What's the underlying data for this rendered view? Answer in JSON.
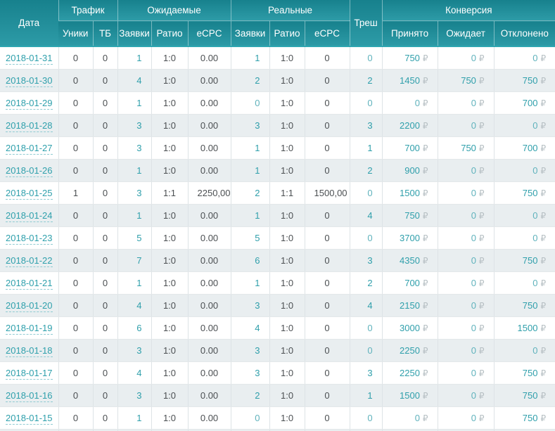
{
  "table": {
    "currency_symbol": "₽",
    "header": {
      "date": "Дата",
      "traffic": "Трафик",
      "uniques": "Уники",
      "tb": "ТБ",
      "expected": "Ожидаемые",
      "leads": "Заявки",
      "ratio": "Ратио",
      "ecpc": "eCPC",
      "real": "Реальные",
      "trash": "Треш",
      "conversion": "Конверсия",
      "accepted": "Принято",
      "pending": "Ожидает",
      "declined": "Отклонено"
    },
    "rows": [
      {
        "date": "2018-01-31",
        "uniques": "0",
        "tb": "0",
        "exp_leads": "1",
        "exp_ratio": "1:0",
        "exp_ecpc": "0.00",
        "real_leads": "1",
        "real_ratio": "1:0",
        "real_ecpc": "0",
        "trash": "0",
        "accepted": "750",
        "pending": "0",
        "declined": "0"
      },
      {
        "date": "2018-01-30",
        "uniques": "0",
        "tb": "0",
        "exp_leads": "4",
        "exp_ratio": "1:0",
        "exp_ecpc": "0.00",
        "real_leads": "2",
        "real_ratio": "1:0",
        "real_ecpc": "0",
        "trash": "2",
        "accepted": "1450",
        "pending": "750",
        "declined": "750"
      },
      {
        "date": "2018-01-29",
        "uniques": "0",
        "tb": "0",
        "exp_leads": "1",
        "exp_ratio": "1:0",
        "exp_ecpc": "0.00",
        "real_leads": "0",
        "real_ratio": "1:0",
        "real_ecpc": "0",
        "trash": "0",
        "accepted": "0",
        "pending": "0",
        "declined": "700"
      },
      {
        "date": "2018-01-28",
        "uniques": "0",
        "tb": "0",
        "exp_leads": "3",
        "exp_ratio": "1:0",
        "exp_ecpc": "0.00",
        "real_leads": "3",
        "real_ratio": "1:0",
        "real_ecpc": "0",
        "trash": "3",
        "accepted": "2200",
        "pending": "0",
        "declined": "0"
      },
      {
        "date": "2018-01-27",
        "uniques": "0",
        "tb": "0",
        "exp_leads": "3",
        "exp_ratio": "1:0",
        "exp_ecpc": "0.00",
        "real_leads": "1",
        "real_ratio": "1:0",
        "real_ecpc": "0",
        "trash": "1",
        "accepted": "700",
        "pending": "750",
        "declined": "700"
      },
      {
        "date": "2018-01-26",
        "uniques": "0",
        "tb": "0",
        "exp_leads": "1",
        "exp_ratio": "1:0",
        "exp_ecpc": "0.00",
        "real_leads": "1",
        "real_ratio": "1:0",
        "real_ecpc": "0",
        "trash": "2",
        "accepted": "900",
        "pending": "0",
        "declined": "0"
      },
      {
        "date": "2018-01-25",
        "uniques": "1",
        "tb": "0",
        "exp_leads": "3",
        "exp_ratio": "1:1",
        "exp_ecpc": "2250,00",
        "real_leads": "2",
        "real_ratio": "1:1",
        "real_ecpc": "1500,00",
        "trash": "0",
        "accepted": "1500",
        "pending": "0",
        "declined": "750"
      },
      {
        "date": "2018-01-24",
        "uniques": "0",
        "tb": "0",
        "exp_leads": "1",
        "exp_ratio": "1:0",
        "exp_ecpc": "0.00",
        "real_leads": "1",
        "real_ratio": "1:0",
        "real_ecpc": "0",
        "trash": "4",
        "accepted": "750",
        "pending": "0",
        "declined": "0"
      },
      {
        "date": "2018-01-23",
        "uniques": "0",
        "tb": "0",
        "exp_leads": "5",
        "exp_ratio": "1:0",
        "exp_ecpc": "0.00",
        "real_leads": "5",
        "real_ratio": "1:0",
        "real_ecpc": "0",
        "trash": "0",
        "accepted": "3700",
        "pending": "0",
        "declined": "0"
      },
      {
        "date": "2018-01-22",
        "uniques": "0",
        "tb": "0",
        "exp_leads": "7",
        "exp_ratio": "1:0",
        "exp_ecpc": "0.00",
        "real_leads": "6",
        "real_ratio": "1:0",
        "real_ecpc": "0",
        "trash": "3",
        "accepted": "4350",
        "pending": "0",
        "declined": "750"
      },
      {
        "date": "2018-01-21",
        "uniques": "0",
        "tb": "0",
        "exp_leads": "1",
        "exp_ratio": "1:0",
        "exp_ecpc": "0.00",
        "real_leads": "1",
        "real_ratio": "1:0",
        "real_ecpc": "0",
        "trash": "2",
        "accepted": "700",
        "pending": "0",
        "declined": "0"
      },
      {
        "date": "2018-01-20",
        "uniques": "0",
        "tb": "0",
        "exp_leads": "4",
        "exp_ratio": "1:0",
        "exp_ecpc": "0.00",
        "real_leads": "3",
        "real_ratio": "1:0",
        "real_ecpc": "0",
        "trash": "4",
        "accepted": "2150",
        "pending": "0",
        "declined": "750"
      },
      {
        "date": "2018-01-19",
        "uniques": "0",
        "tb": "0",
        "exp_leads": "6",
        "exp_ratio": "1:0",
        "exp_ecpc": "0.00",
        "real_leads": "4",
        "real_ratio": "1:0",
        "real_ecpc": "0",
        "trash": "0",
        "accepted": "3000",
        "pending": "0",
        "declined": "1500"
      },
      {
        "date": "2018-01-18",
        "uniques": "0",
        "tb": "0",
        "exp_leads": "3",
        "exp_ratio": "1:0",
        "exp_ecpc": "0.00",
        "real_leads": "3",
        "real_ratio": "1:0",
        "real_ecpc": "0",
        "trash": "0",
        "accepted": "2250",
        "pending": "0",
        "declined": "0"
      },
      {
        "date": "2018-01-17",
        "uniques": "0",
        "tb": "0",
        "exp_leads": "4",
        "exp_ratio": "1:0",
        "exp_ecpc": "0.00",
        "real_leads": "3",
        "real_ratio": "1:0",
        "real_ecpc": "0",
        "trash": "3",
        "accepted": "2250",
        "pending": "0",
        "declined": "750"
      },
      {
        "date": "2018-01-16",
        "uniques": "0",
        "tb": "0",
        "exp_leads": "3",
        "exp_ratio": "1:0",
        "exp_ecpc": "0.00",
        "real_leads": "2",
        "real_ratio": "1:0",
        "real_ecpc": "0",
        "trash": "1",
        "accepted": "1500",
        "pending": "0",
        "declined": "750"
      },
      {
        "date": "2018-01-15",
        "uniques": "0",
        "tb": "0",
        "exp_leads": "1",
        "exp_ratio": "1:0",
        "exp_ecpc": "0.00",
        "real_leads": "0",
        "real_ratio": "1:0",
        "real_ecpc": "0",
        "trash": "0",
        "accepted": "0",
        "pending": "0",
        "declined": "750"
      }
    ]
  }
}
